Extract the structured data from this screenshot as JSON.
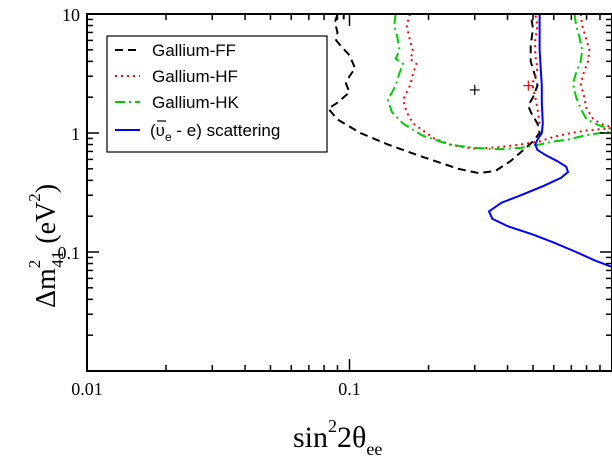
{
  "chart_data": {
    "type": "line",
    "title": "",
    "xscale": "log",
    "yscale": "log",
    "xlim": [
      0.01,
      1.0
    ],
    "ylim": [
      0.01,
      10
    ],
    "grid": false,
    "legend_placement": "top-left",
    "x_ticks": [
      {
        "value": 0.01,
        "label": "0.01"
      },
      {
        "value": 0.1,
        "label": "0.1"
      }
    ],
    "y_ticks": [
      {
        "value": 0.1,
        "label": "0.1"
      },
      {
        "value": 1,
        "label": "1"
      },
      {
        "value": 10,
        "label": "10"
      }
    ],
    "xlabel": {
      "base": "sin",
      "sup1": "2",
      "mid": "2θ",
      "sub": "ee"
    },
    "ylabel": {
      "pre": "Δm",
      "sup1": "2",
      "sub": "41",
      "mid": " (eV",
      "sup2": "2",
      "post": ")"
    },
    "best_fit_markers": [
      {
        "x": 0.3,
        "y": 2.3,
        "symbol": "+",
        "color": "#000000"
      },
      {
        "x": 0.48,
        "y": 2.5,
        "symbol": "+",
        "color": "#ff0000"
      }
    ],
    "series": [
      {
        "name": "Gallium-FF",
        "color": "#000000",
        "dash": "8,5",
        "segments": [
          [
            [
              0.09,
              10
            ],
            [
              0.088,
              8.5
            ],
            [
              0.09,
              7
            ],
            [
              0.089,
              6
            ],
            [
              0.092,
              5.5
            ],
            [
              0.1,
              4.5
            ],
            [
              0.105,
              3.5
            ],
            [
              0.1,
              3
            ],
            [
              0.097,
              2.6
            ],
            [
              0.1,
              2.2
            ],
            [
              0.09,
              1.8
            ],
            [
              0.083,
              1.6
            ],
            [
              0.09,
              1.3
            ],
            [
              0.11,
              1.0
            ],
            [
              0.14,
              0.8
            ],
            [
              0.19,
              0.63
            ],
            [
              0.26,
              0.5
            ],
            [
              0.31,
              0.46
            ],
            [
              0.36,
              0.48
            ],
            [
              0.41,
              0.58
            ],
            [
              0.47,
              0.75
            ],
            [
              0.5,
              0.85
            ],
            [
              0.53,
              1.0
            ],
            [
              0.52,
              1.2
            ],
            [
              0.49,
              1.5
            ],
            [
              0.48,
              1.7
            ],
            [
              0.5,
              2.0
            ],
            [
              0.52,
              2.5
            ],
            [
              0.51,
              3.0
            ],
            [
              0.49,
              4.0
            ],
            [
              0.49,
              5.5
            ],
            [
              0.5,
              7.5
            ],
            [
              0.49,
              10
            ]
          ],
          [
            [
              0.095,
              10
            ],
            [
              0.095,
              9
            ]
          ]
        ]
      },
      {
        "name": "Gallium-HF",
        "color": "#ff0000",
        "dash": "2,4",
        "segments": [
          [
            [
              0.17,
              10
            ],
            [
              0.165,
              8
            ],
            [
              0.17,
              6
            ],
            [
              0.175,
              4.8
            ],
            [
              0.17,
              4.2
            ],
            [
              0.18,
              3.8
            ],
            [
              0.175,
              3.2
            ],
            [
              0.17,
              2.5
            ],
            [
              0.16,
              1.9
            ],
            [
              0.165,
              1.5
            ],
            [
              0.175,
              1.2
            ],
            [
              0.21,
              0.9
            ],
            [
              0.25,
              0.78
            ],
            [
              0.3,
              0.74
            ],
            [
              0.37,
              0.76
            ],
            [
              0.45,
              0.8
            ],
            [
              0.53,
              0.85
            ],
            [
              0.6,
              0.93
            ],
            [
              0.7,
              1.0
            ],
            [
              0.8,
              1.05
            ],
            [
              1.0,
              1.1
            ]
          ],
          [
            [
              0.53,
              1.2
            ],
            [
              0.52,
              1.6
            ],
            [
              0.51,
              2.0
            ],
            [
              0.5,
              2.4
            ],
            [
              0.5,
              2.7
            ],
            [
              0.51,
              3.0
            ],
            [
              0.52,
              3.5
            ],
            [
              0.51,
              4.5
            ],
            [
              0.51,
              6
            ],
            [
              0.52,
              8
            ],
            [
              0.51,
              10
            ]
          ],
          [
            [
              0.76,
              10
            ],
            [
              0.77,
              8
            ],
            [
              0.8,
              6
            ],
            [
              0.82,
              5
            ],
            [
              0.81,
              4
            ],
            [
              0.78,
              3.2
            ],
            [
              0.76,
              2.6
            ],
            [
              0.78,
              2.1
            ],
            [
              0.8,
              1.6
            ],
            [
              0.85,
              1.3
            ],
            [
              0.92,
              1.18
            ],
            [
              1.0,
              1.12
            ]
          ]
        ]
      },
      {
        "name": "Gallium-HK",
        "color": "#00cc00",
        "dash": "10,4,2,4",
        "segments": [
          [
            [
              0.15,
              10
            ],
            [
              0.148,
              8
            ],
            [
              0.152,
              6.5
            ],
            [
              0.155,
              5
            ],
            [
              0.15,
              4.2
            ],
            [
              0.16,
              3.8
            ],
            [
              0.155,
              3.2
            ],
            [
              0.15,
              2.5
            ],
            [
              0.14,
              1.9
            ],
            [
              0.145,
              1.5
            ],
            [
              0.16,
              1.2
            ],
            [
              0.19,
              0.95
            ],
            [
              0.24,
              0.8
            ],
            [
              0.3,
              0.75
            ],
            [
              0.37,
              0.73
            ],
            [
              0.45,
              0.75
            ],
            [
              0.53,
              0.8
            ],
            [
              0.6,
              0.85
            ],
            [
              0.68,
              0.88
            ],
            [
              0.78,
              0.95
            ],
            [
              0.9,
              1.0
            ],
            [
              1.0,
              1.02
            ]
          ],
          [
            [
              0.72,
              10
            ],
            [
              0.73,
              8
            ],
            [
              0.75,
              6.5
            ],
            [
              0.77,
              5
            ],
            [
              0.76,
              4
            ],
            [
              0.73,
              3.2
            ],
            [
              0.71,
              2.6
            ],
            [
              0.73,
              2.0
            ],
            [
              0.76,
              1.6
            ],
            [
              0.8,
              1.3
            ],
            [
              0.9,
              1.15
            ],
            [
              1.0,
              1.08
            ]
          ]
        ]
      },
      {
        "name": "(ῡ_e - e) scattering",
        "color": "#0000ff",
        "dash": "",
        "segments": [
          [
            [
              0.53,
              10
            ],
            [
              0.53,
              5
            ],
            [
              0.535,
              3.5
            ],
            [
              0.54,
              2.5
            ],
            [
              0.54,
              1.8
            ],
            [
              0.545,
              1.2
            ],
            [
              0.54,
              1.0
            ],
            [
              0.52,
              0.88
            ],
            [
              0.51,
              0.8
            ],
            [
              0.52,
              0.72
            ],
            [
              0.56,
              0.65
            ],
            [
              0.62,
              0.58
            ],
            [
              0.67,
              0.52
            ],
            [
              0.68,
              0.47
            ],
            [
              0.64,
              0.42
            ],
            [
              0.55,
              0.36
            ],
            [
              0.45,
              0.3
            ],
            [
              0.38,
              0.26
            ],
            [
              0.34,
              0.22
            ],
            [
              0.35,
              0.19
            ],
            [
              0.4,
              0.165
            ],
            [
              0.5,
              0.14
            ],
            [
              0.6,
              0.12
            ],
            [
              0.73,
              0.1
            ],
            [
              0.86,
              0.085
            ],
            [
              1.0,
              0.075
            ]
          ]
        ]
      }
    ],
    "legend": [
      {
        "label": "Gallium-FF",
        "series": 0
      },
      {
        "label": "Gallium-HF",
        "series": 1
      },
      {
        "label": "Gallium-HK",
        "series": 2
      },
      {
        "label_pre": "(",
        "label_bar": "υ",
        "label_sub": "e",
        "label_post": " - e) scattering",
        "series": 3
      }
    ]
  }
}
